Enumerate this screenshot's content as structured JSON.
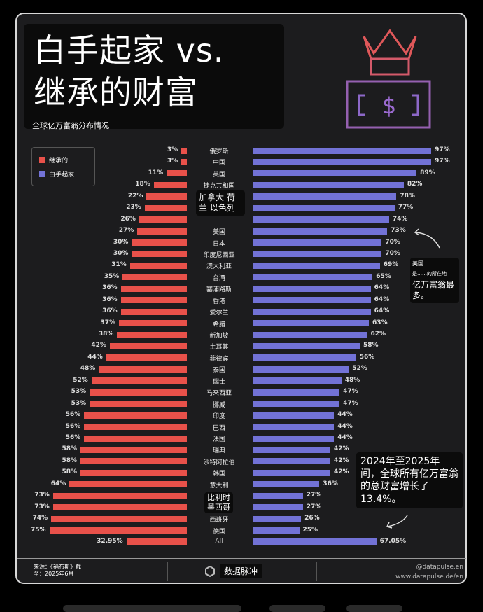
{
  "header": {
    "title_line1": "白手起家 vs.",
    "title_line2": "继承的财富",
    "subtitle": "全球亿万富翁分布情况"
  },
  "legend": {
    "inherited": "继承的",
    "self_made": "白手起家"
  },
  "colors": {
    "inherited": "#e8514a",
    "self_made": "#7272d6",
    "background": "#1c1c1e"
  },
  "overlay_labels": {
    "rows_5_6": "加拿大 荷兰 以色列",
    "rows_31_32_a": "比利时",
    "rows_31_32_b": "墨西哥"
  },
  "annotations": {
    "usa_line1": "美国",
    "usa_line2": "是……的所在地",
    "usa_line3": "亿万富翁最多。",
    "growth": "2024年至2025年间，全球所有亿万富翁的总财富增长了13.4%。"
  },
  "footer": {
    "source_line1": "来源：《福布斯》截",
    "source_line2": "至：2025年6月",
    "brand": "数据脉冲",
    "handle": "@datapulse.en",
    "url": "www.datapulse.de/en"
  },
  "chart_data": {
    "type": "bar",
    "orientation": "horizontal-diverging",
    "unit": "%",
    "categories": [
      "俄罗斯",
      "中国",
      "英国",
      "捷克共和国",
      "",
      "",
      "",
      "美国",
      "日本",
      "印度尼西亚",
      "澳大利亚",
      "台湾",
      "塞浦路斯",
      "香港",
      "爱尔兰",
      "希腊",
      "新加坡",
      "土耳其",
      "菲律宾",
      "泰国",
      "瑞士",
      "马来西亚",
      "挪威",
      "印度",
      "巴西",
      "法国",
      "瑞典",
      "沙特阿拉伯",
      "韩国",
      "意大利",
      "",
      "",
      "西班牙",
      "德国",
      "All"
    ],
    "series": [
      {
        "name": "继承的",
        "values": [
          3,
          3,
          11,
          18,
          22,
          23,
          26,
          27,
          30,
          30,
          31,
          35,
          36,
          36,
          36,
          37,
          38,
          42,
          44,
          48,
          52,
          53,
          53,
          56,
          56,
          56,
          58,
          58,
          58,
          64,
          73,
          73,
          74,
          75,
          32.95
        ],
        "labels": [
          "3%",
          "3%",
          "11%",
          "18%",
          "22%",
          "23%",
          "26%",
          "27%",
          "30%",
          "30%",
          "31%",
          "35%",
          "36%",
          "36%",
          "36%",
          "37%",
          "38%",
          "42%",
          "44%",
          "48%",
          "52%",
          "53%",
          "53%",
          "56%",
          "56%",
          "56%",
          "58%",
          "58%",
          "58%",
          "64%",
          "73%",
          "73%",
          "74%",
          "75%",
          "32.95%"
        ]
      },
      {
        "name": "白手起家",
        "values": [
          97,
          97,
          89,
          82,
          78,
          77,
          74,
          73,
          70,
          70,
          69,
          65,
          64,
          64,
          64,
          63,
          62,
          58,
          56,
          52,
          48,
          47,
          47,
          44,
          44,
          44,
          42,
          42,
          42,
          36,
          27,
          27,
          26,
          25,
          67.05
        ],
        "labels": [
          "97%",
          "97%",
          "89%",
          "82%",
          "78%",
          "77%",
          "74%",
          "73%",
          "70%",
          "70%",
          "69%",
          "65%",
          "64%",
          "64%",
          "64%",
          "63%",
          "62%",
          "58%",
          "56%",
          "52%",
          "48%",
          "47%",
          "47%",
          "44%",
          "44%",
          "44%",
          "42%",
          "42%",
          "42%",
          "36%",
          "27%",
          "27%",
          "26%",
          "25%",
          "67.05%"
        ]
      }
    ],
    "legend": "top-left",
    "grid": false
  }
}
